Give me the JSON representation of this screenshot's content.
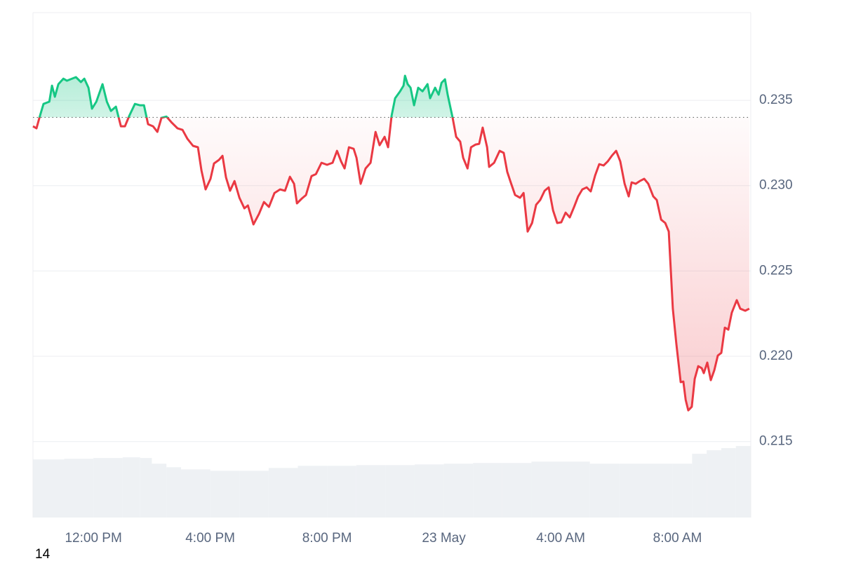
{
  "chart_data": {
    "type": "line",
    "x": [
      9.93,
      10.05,
      10.17,
      10.29,
      10.49,
      10.58,
      10.68,
      10.8,
      10.97,
      11.09,
      11.21,
      11.4,
      11.57,
      11.69,
      11.83,
      11.95,
      12.1,
      12.31,
      12.46,
      12.6,
      12.77,
      12.94,
      13.08,
      13.23,
      13.42,
      13.59,
      13.73,
      13.87,
      14.04,
      14.19,
      14.33,
      14.5,
      14.69,
      14.88,
      15.05,
      15.22,
      15.41,
      15.58,
      15.7,
      15.84,
      16.01,
      16.13,
      16.3,
      16.42,
      16.54,
      16.68,
      16.83,
      17.0,
      17.17,
      17.29,
      17.48,
      17.67,
      17.84,
      18.01,
      18.2,
      18.39,
      18.56,
      18.73,
      18.87,
      18.97,
      19.14,
      19.28,
      19.47,
      19.62,
      19.81,
      20.0,
      20.19,
      20.34,
      20.48,
      20.6,
      20.75,
      20.91,
      21.01,
      21.15,
      21.32,
      21.49,
      21.66,
      21.8,
      21.97,
      22.09,
      22.21,
      22.33,
      22.5,
      22.62,
      22.67,
      22.76,
      22.86,
      22.98,
      23.12,
      23.27,
      23.44,
      23.53,
      23.7,
      23.82,
      23.92,
      24.04,
      24.13,
      24.3,
      24.42,
      24.56,
      24.66,
      24.81,
      24.93,
      25.09,
      25.21,
      25.33,
      25.48,
      25.55,
      25.72,
      25.91,
      26.05,
      26.17,
      26.29,
      26.44,
      26.61,
      26.73,
      26.87,
      27.02,
      27.16,
      27.3,
      27.45,
      27.59,
      27.74,
      27.88,
      28.02,
      28.17,
      28.31,
      28.46,
      28.6,
      28.74,
      28.89,
      29.03,
      29.18,
      29.32,
      29.47,
      29.61,
      29.75,
      29.9,
      30.04,
      30.19,
      30.33,
      30.43,
      30.57,
      30.71,
      30.86,
      31.0,
      31.17,
      31.29,
      31.44,
      31.58,
      31.7,
      31.84,
      31.96,
      32.11,
      32.2,
      32.28,
      32.37,
      32.49,
      32.59,
      32.71,
      32.83,
      32.9,
      33.02,
      33.14,
      33.26,
      33.38,
      33.5,
      33.62,
      33.74,
      33.86,
      34.03,
      34.15,
      34.32,
      34.46
    ],
    "values": [
      0.23348,
      0.23336,
      0.2341,
      0.23479,
      0.23492,
      0.23586,
      0.23521,
      0.23595,
      0.23627,
      0.23615,
      0.23623,
      0.23636,
      0.23607,
      0.23627,
      0.23574,
      0.23451,
      0.23492,
      0.23595,
      0.23492,
      0.23438,
      0.23463,
      0.23348,
      0.23348,
      0.2341,
      0.23479,
      0.23471,
      0.23471,
      0.2336,
      0.23348,
      0.23315,
      0.23397,
      0.23405,
      0.23368,
      0.23336,
      0.23327,
      0.23274,
      0.23233,
      0.23225,
      0.23089,
      0.22978,
      0.2304,
      0.2313,
      0.23151,
      0.23175,
      0.23048,
      0.2297,
      0.23027,
      0.22929,
      0.22867,
      0.22884,
      0.22773,
      0.22834,
      0.22904,
      0.22875,
      0.22957,
      0.22978,
      0.2297,
      0.23052,
      0.23011,
      0.22896,
      0.22925,
      0.22945,
      0.23056,
      0.23068,
      0.23134,
      0.23122,
      0.23134,
      0.23204,
      0.23142,
      0.23101,
      0.23225,
      0.23216,
      0.23163,
      0.23011,
      0.23101,
      0.23134,
      0.23315,
      0.23237,
      0.23286,
      0.23225,
      0.2341,
      0.23512,
      0.23553,
      0.23586,
      0.23644,
      0.23595,
      0.23574,
      0.23471,
      0.23574,
      0.23553,
      0.23595,
      0.23512,
      0.23574,
      0.23533,
      0.23603,
      0.23623,
      0.23533,
      0.23397,
      0.23286,
      0.23258,
      0.23163,
      0.23101,
      0.23225,
      0.23241,
      0.23245,
      0.2334,
      0.23225,
      0.2311,
      0.23134,
      0.23204,
      0.23192,
      0.23081,
      0.23019,
      0.22945,
      0.22929,
      0.22957,
      0.22731,
      0.22781,
      0.22888,
      0.22916,
      0.2297,
      0.2299,
      0.22855,
      0.22781,
      0.22785,
      0.22842,
      0.22814,
      0.22875,
      0.22937,
      0.22978,
      0.2299,
      0.22966,
      0.2306,
      0.23126,
      0.23118,
      0.23142,
      0.23175,
      0.23204,
      0.23142,
      0.23011,
      0.22937,
      0.23019,
      0.23011,
      0.23027,
      0.2304,
      0.23011,
      0.22937,
      0.22916,
      0.22801,
      0.22781,
      0.22731,
      0.22279,
      0.22074,
      0.21848,
      0.21852,
      0.21745,
      0.21683,
      0.21704,
      0.21868,
      0.21942,
      0.2193,
      0.21901,
      0.21963,
      0.2186,
      0.21918,
      0.22004,
      0.2202,
      0.22168,
      0.22156,
      0.22255,
      0.22329,
      0.22279,
      0.22267,
      0.22279
    ],
    "baseline": 0.234,
    "up_color": "#16c784",
    "down_color": "#ea3943",
    "xlim": [
      9.93,
      34.51
    ],
    "ylim": [
      0.21055,
      0.24014
    ],
    "xticks": [
      {
        "value": 12,
        "label": "12:00 PM"
      },
      {
        "value": 16,
        "label": "4:00 PM"
      },
      {
        "value": 20,
        "label": "8:00 PM"
      },
      {
        "value": 24,
        "label": "23 May"
      },
      {
        "value": 28,
        "label": "4:00 AM"
      },
      {
        "value": 32,
        "label": "8:00 AM"
      }
    ],
    "yticks": [
      0.215,
      {
        "value": 0.22,
        "label": "0.220"
      },
      0.225,
      {
        "value": 0.23,
        "label": "0.230"
      },
      0.235
    ],
    "grid": true,
    "volume": {
      "x": [
        9.93,
        11,
        12,
        13,
        13.6,
        14,
        14.5,
        15,
        16,
        17,
        18,
        19,
        20,
        21,
        22,
        23,
        24,
        25,
        26,
        27,
        28,
        29,
        30,
        31,
        31.84,
        32.5,
        33,
        33.5,
        34
      ],
      "values": [
        82,
        83,
        84,
        85,
        84,
        76,
        71,
        68,
        66,
        66,
        70,
        73,
        73,
        74,
        74,
        75,
        76,
        77,
        77,
        79,
        79,
        76,
        76,
        76,
        76,
        90,
        95,
        98,
        101
      ],
      "color": "#eef1f4"
    },
    "footnote": "14"
  }
}
